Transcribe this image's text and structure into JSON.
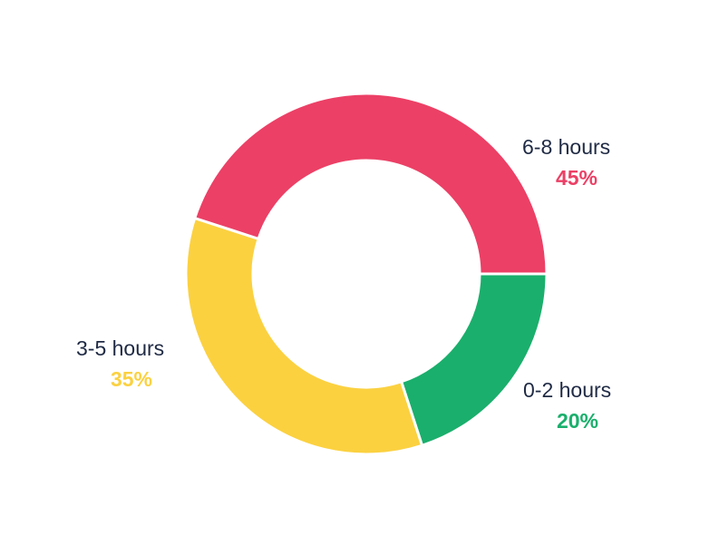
{
  "chart_data": {
    "type": "pie",
    "variant": "donut",
    "legend_placement": "outside labels",
    "slices": [
      {
        "label": "0-2 hours",
        "value": 20,
        "display": "20%",
        "color": "#1aaf6c"
      },
      {
        "label": "3-5 hours",
        "value": 35,
        "display": "35%",
        "color": "#fbd140"
      },
      {
        "label": "6-8 hours",
        "value": 45,
        "display": "45%",
        "color": "#ec4066"
      }
    ]
  }
}
